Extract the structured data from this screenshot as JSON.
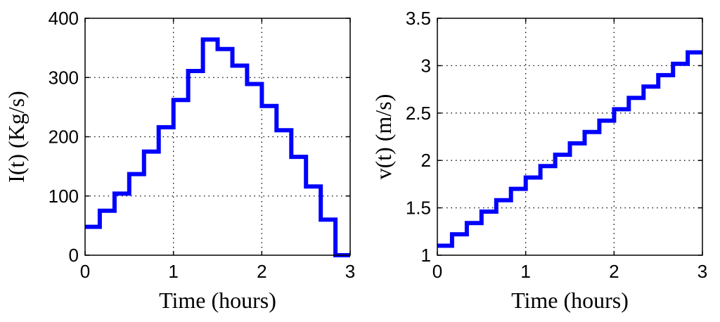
{
  "chart_data": [
    {
      "type": "line",
      "step": true,
      "grid": true,
      "xlabel": "Time (hours)",
      "ylabel": "I(t) (Kg/s)",
      "xlim": [
        0,
        3
      ],
      "ylim": [
        0,
        400
      ],
      "xticks": [
        0,
        1,
        2,
        3
      ],
      "xtick_labels": [
        "0",
        "1",
        "2",
        "3"
      ],
      "yticks": [
        0,
        100,
        200,
        300,
        400
      ],
      "ytick_labels": [
        "0",
        "100",
        "200",
        "300",
        "400"
      ],
      "color": "#0000ff",
      "series": [
        {
          "bin_width_hours": 0.1667,
          "values": [
            48,
            75,
            104,
            137,
            175,
            216,
            262,
            311,
            364,
            348,
            320,
            289,
            252,
            211,
            166,
            116,
            60,
            0
          ]
        }
      ]
    },
    {
      "type": "line",
      "step": true,
      "grid": true,
      "xlabel": "Time (hours)",
      "ylabel": "v(t) (m/s)",
      "xlim": [
        0,
        3
      ],
      "ylim": [
        1,
        3.5
      ],
      "xticks": [
        0,
        1,
        2,
        3
      ],
      "xtick_labels": [
        "0",
        "1",
        "2",
        "3"
      ],
      "yticks": [
        1,
        1.5,
        2,
        2.5,
        3,
        3.5
      ],
      "ytick_labels": [
        "1",
        "1.5",
        "2",
        "2.5",
        "3",
        "3.5"
      ],
      "color": "#0000ff",
      "series": [
        {
          "bin_width_hours": 0.1667,
          "values": [
            1.1,
            1.22,
            1.34,
            1.46,
            1.58,
            1.7,
            1.82,
            1.94,
            2.06,
            2.18,
            2.3,
            2.42,
            2.54,
            2.66,
            2.78,
            2.9,
            3.02,
            3.14
          ]
        }
      ]
    }
  ]
}
